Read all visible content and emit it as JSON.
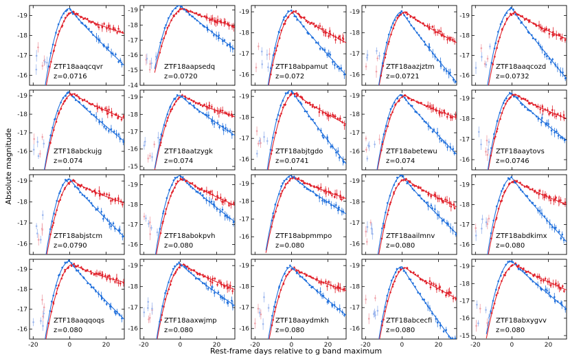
{
  "colors": {
    "g": "#1f6fdc",
    "r": "#e0202a",
    "g_light": "#9bb6ee",
    "r_light": "#f0a0a8",
    "axis": "#000000"
  },
  "chart_data": {
    "type": "scatter",
    "title": "",
    "xlabel": "Rest-frame days relative to g band maximum",
    "ylabel": "Absolute magnitude",
    "xlim": [
      -22,
      30
    ],
    "x_ticks": [
      -20,
      0,
      20
    ],
    "y_inverted": true,
    "bands": [
      "g",
      "r"
    ],
    "panels": [
      {
        "name": "ZTF18aaqcqvr",
        "z": "z=0.0716",
        "ylim": [
          -15.5,
          -19.5
        ],
        "yticks": [
          -16,
          -17,
          -18,
          -19
        ],
        "peak_g": -19.35,
        "peak_r": -19.15,
        "decline_g": 0.088,
        "decline_r": 0.03,
        "early": true
      },
      {
        "name": "ZTF18aapsedq",
        "z": "z=0.0720",
        "ylim": [
          -14.0,
          -19.3
        ],
        "yticks": [
          -14,
          -15,
          -16,
          -17,
          -18,
          -19
        ],
        "peak_g": -19.3,
        "peak_r": -19.1,
        "decline_g": 0.09,
        "decline_r": 0.035,
        "early": true
      },
      {
        "name": "ZTF18abpamut",
        "z": "z=0.072",
        "ylim": [
          -15.5,
          -19.3
        ],
        "yticks": [
          -16,
          -17,
          -18,
          -19
        ],
        "peak_g": -19.05,
        "peak_r": -19.0,
        "decline_g": 0.095,
        "decline_r": 0.045,
        "early": true
      },
      {
        "name": "ZTF18aazjztm",
        "z": "z=0.0721",
        "ylim": [
          -15.5,
          -19.3
        ],
        "yticks": [
          -16,
          -17,
          -18,
          -19
        ],
        "peak_g": -19.0,
        "peak_r": -19.0,
        "decline_g": 0.105,
        "decline_r": 0.045,
        "early": true
      },
      {
        "name": "ZTF18aaqcozd",
        "z": "z=0.0732",
        "ylim": [
          -15.5,
          -19.5
        ],
        "yticks": [
          -16,
          -17,
          -18,
          -19
        ],
        "peak_g": -19.35,
        "peak_r": -19.15,
        "decline_g": 0.11,
        "decline_r": 0.04,
        "early": true
      },
      {
        "name": "ZTF18abckujg",
        "z": "z=0.074",
        "ylim": [
          -15.0,
          -19.3
        ],
        "yticks": [
          -16,
          -17,
          -18,
          -19
        ],
        "peak_g": -19.15,
        "peak_r": -19.1,
        "decline_g": 0.08,
        "decline_r": 0.04,
        "early": true
      },
      {
        "name": "ZTF18aatzygk",
        "z": "z=0.074",
        "ylim": [
          -14.8,
          -19.4
        ],
        "yticks": [
          -15,
          -16,
          -17,
          -18,
          -19
        ],
        "peak_g": -19.1,
        "peak_r": -19.05,
        "decline_g": 0.07,
        "decline_r": 0.035,
        "early": true
      },
      {
        "name": "ZTF18abjtgdo",
        "z": "z=0.0741",
        "ylim": [
          -15.5,
          -19.3
        ],
        "yticks": [
          -16,
          -17,
          -18,
          -19
        ],
        "peak_g": -19.3,
        "peak_r": -19.15,
        "decline_g": 0.11,
        "decline_r": 0.045,
        "early": true
      },
      {
        "name": "ZTF18abetewu",
        "z": "z=0.074",
        "ylim": [
          -15.0,
          -19.3
        ],
        "yticks": [
          -16,
          -17,
          -18,
          -19
        ],
        "peak_g": -19.05,
        "peak_r": -19.0,
        "decline_g": 0.1,
        "decline_r": 0.035,
        "early": true
      },
      {
        "name": "ZTF18aaytovs",
        "z": "z=0.0746",
        "ylim": [
          -15.5,
          -19.4
        ],
        "yticks": [
          -16,
          -17,
          -18,
          -19
        ],
        "peak_g": -19.25,
        "peak_r": -19.2,
        "decline_g": 0.07,
        "decline_r": 0.035,
        "early": true
      },
      {
        "name": "ZTF18abjstcm",
        "z": "z=0.0790",
        "ylim": [
          -15.5,
          -19.3
        ],
        "yticks": [
          -16,
          -17,
          -18,
          -19
        ],
        "peak_g": -19.1,
        "peak_r": -19.0,
        "decline_g": 0.085,
        "decline_r": 0.03,
        "early": true
      },
      {
        "name": "ZTF18abokpvh",
        "z": "z=0.080",
        "ylim": [
          -15.5,
          -19.5
        ],
        "yticks": [
          -16,
          -17,
          -18,
          -19
        ],
        "peak_g": -19.45,
        "peak_r": -19.3,
        "decline_g": 0.07,
        "decline_r": 0.04,
        "early": true
      },
      {
        "name": "ZTF18abpmmpo",
        "z": "z=0.080",
        "ylim": [
          -15.0,
          -19.5
        ],
        "yticks": [
          -16,
          -17,
          -18,
          -19
        ],
        "peak_g": -19.45,
        "peak_r": -19.35,
        "decline_g": 0.065,
        "decline_r": 0.035,
        "early": false
      },
      {
        "name": "ZTF18aailmnv",
        "z": "z=0.080",
        "ylim": [
          -15.5,
          -19.3
        ],
        "yticks": [
          -16,
          -17,
          -18,
          -19
        ],
        "peak_g": -19.25,
        "peak_r": -19.1,
        "decline_g": 0.085,
        "decline_r": 0.04,
        "early": true
      },
      {
        "name": "ZTF18abdkimx",
        "z": "z=0.080",
        "ylim": [
          -15.5,
          -19.5
        ],
        "yticks": [
          -16,
          -17,
          -18,
          -19
        ],
        "peak_g": -19.35,
        "peak_r": -19.2,
        "decline_g": 0.1,
        "decline_r": 0.035,
        "early": true
      },
      {
        "name": "ZTF18aaqqoqs",
        "z": "z=0.080",
        "ylim": [
          -15.5,
          -19.5
        ],
        "yticks": [
          -16,
          -17,
          -18,
          -19
        ],
        "peak_g": -19.4,
        "peak_r": -19.25,
        "decline_g": 0.09,
        "decline_r": 0.025,
        "early": true
      },
      {
        "name": "ZTF18aaxwjmp",
        "z": "z=0.080",
        "ylim": [
          -15.5,
          -19.3
        ],
        "yticks": [
          -16,
          -17,
          -18,
          -19
        ],
        "peak_g": -19.1,
        "peak_r": -19.05,
        "decline_g": 0.06,
        "decline_r": 0.035,
        "early": true
      },
      {
        "name": "ZTF18aaydmkh",
        "z": "z=0.080",
        "ylim": [
          -15.5,
          -19.3
        ],
        "yticks": [
          -16,
          -17,
          -18,
          -19
        ],
        "peak_g": -18.95,
        "peak_r": -18.85,
        "decline_g": 0.07,
        "decline_r": 0.03,
        "early": true
      },
      {
        "name": "ZTF18abcecfi",
        "z": "z=0.080",
        "ylim": [
          -15.5,
          -19.3
        ],
        "yticks": [
          -16,
          -17,
          -18,
          -19
        ],
        "peak_g": -18.95,
        "peak_r": -18.9,
        "decline_g": 0.12,
        "decline_r": 0.045,
        "early": true
      },
      {
        "name": "ZTF18abxygvv",
        "z": "z=0.080",
        "ylim": [
          -14.8,
          -19.4
        ],
        "yticks": [
          -15,
          -16,
          -17,
          -18,
          -19
        ],
        "peak_g": -19.3,
        "peak_r": -19.1,
        "decline_g": 0.085,
        "decline_r": 0.045,
        "early": true
      }
    ]
  }
}
